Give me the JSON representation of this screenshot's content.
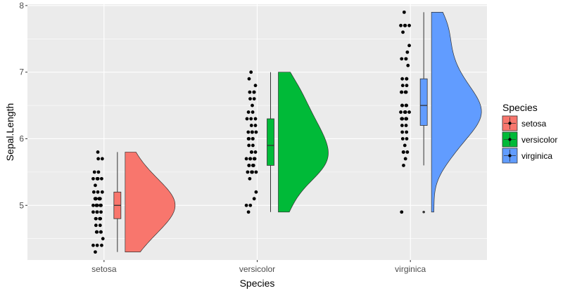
{
  "chart_data": {
    "type": "raincloud",
    "xlabel": "Species",
    "ylabel": "Sepal.Length",
    "categories": [
      "setosa",
      "versicolor",
      "virginica"
    ],
    "y_ticks": [
      5,
      6,
      7,
      8
    ],
    "ylim": [
      4.18,
      8.02
    ],
    "grid": true,
    "panel_background": "#ebebeb",
    "series": [
      {
        "name": "setosa",
        "color": "#f8766d",
        "box": {
          "min": 4.3,
          "q1": 4.8,
          "median": 5.0,
          "q3": 5.2,
          "max": 5.8
        },
        "points": [
          4.3,
          4.4,
          4.4,
          4.4,
          4.5,
          4.6,
          4.6,
          4.6,
          4.6,
          4.7,
          4.7,
          4.8,
          4.8,
          4.8,
          4.8,
          4.8,
          4.9,
          4.9,
          4.9,
          4.9,
          5.0,
          5.0,
          5.0,
          5.0,
          5.0,
          5.0,
          5.0,
          5.0,
          5.1,
          5.1,
          5.1,
          5.1,
          5.1,
          5.1,
          5.1,
          5.1,
          5.2,
          5.2,
          5.2,
          5.3,
          5.4,
          5.4,
          5.4,
          5.4,
          5.4,
          5.5,
          5.5,
          5.7,
          5.7,
          5.8
        ],
        "density_peak": 5.03
      },
      {
        "name": "versicolor",
        "color": "#00ba38",
        "box": {
          "min": 4.9,
          "q1": 5.6,
          "median": 5.9,
          "q3": 6.3,
          "max": 7.0
        },
        "points": [
          4.9,
          5.0,
          5.0,
          5.1,
          5.2,
          5.4,
          5.5,
          5.5,
          5.5,
          5.5,
          5.5,
          5.6,
          5.6,
          5.6,
          5.6,
          5.6,
          5.7,
          5.7,
          5.7,
          5.7,
          5.7,
          5.8,
          5.8,
          5.8,
          5.9,
          5.9,
          6.0,
          6.0,
          6.0,
          6.0,
          6.1,
          6.1,
          6.1,
          6.1,
          6.2,
          6.2,
          6.3,
          6.3,
          6.3,
          6.4,
          6.4,
          6.5,
          6.6,
          6.6,
          6.7,
          6.7,
          6.7,
          6.8,
          6.9,
          7.0
        ],
        "density_peak": 5.85
      },
      {
        "name": "virginica",
        "color": "#619cff",
        "box": {
          "min": 5.6,
          "q1": 6.2,
          "median": 6.5,
          "q3": 6.9,
          "max": 7.9
        },
        "outliers": [
          4.9
        ],
        "points": [
          4.9,
          5.6,
          5.7,
          5.8,
          5.8,
          5.8,
          5.9,
          6.0,
          6.0,
          6.1,
          6.1,
          6.2,
          6.2,
          6.3,
          6.3,
          6.3,
          6.3,
          6.3,
          6.3,
          6.4,
          6.4,
          6.4,
          6.4,
          6.4,
          6.5,
          6.5,
          6.5,
          6.5,
          6.7,
          6.7,
          6.7,
          6.7,
          6.7,
          6.8,
          6.8,
          6.9,
          6.9,
          6.9,
          7.1,
          7.2,
          7.2,
          7.2,
          7.3,
          7.4,
          7.6,
          7.7,
          7.7,
          7.7,
          7.7,
          7.9
        ],
        "density_peak": 6.45
      }
    ],
    "legend": {
      "title": "Species",
      "position": "right",
      "entries": [
        "setosa",
        "versicolor",
        "virginica"
      ]
    }
  }
}
